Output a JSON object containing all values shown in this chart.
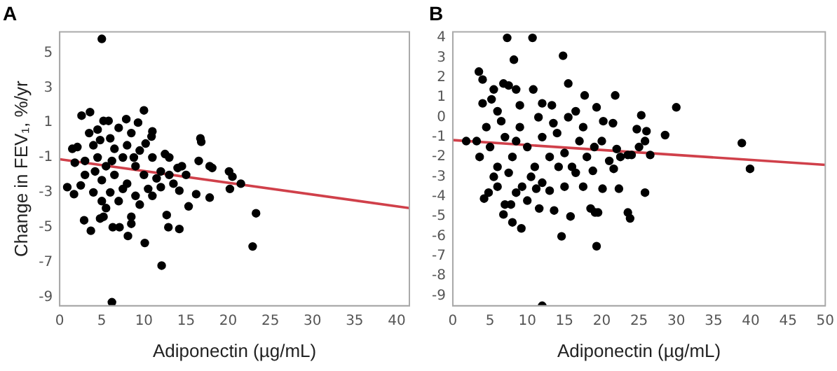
{
  "chart_data": [
    {
      "type": "scatter",
      "title": "A",
      "xlabel": "Adiponectin (µg/mL)",
      "ylabel": "Change in FEV₁, %/yr",
      "xlim": [
        0,
        41.5
      ],
      "ylim": [
        -9.5,
        6.2
      ],
      "xticks": [
        0,
        5,
        10,
        15,
        20,
        25,
        30,
        35,
        40
      ],
      "yticks": [
        -9,
        -7,
        -5,
        -3,
        -1,
        1,
        3,
        5
      ],
      "grid": false,
      "legend": false,
      "series": [
        {
          "color": "#000000",
          "marker": "circle",
          "x": [
            5.0,
            2.6,
            3.6,
            10,
            6.2,
            12.1,
            10.1,
            8.1,
            22.9,
            23.3,
            20.2,
            21.5,
            16.8,
            16.7,
            17.8,
            18.1,
            17.8,
            15.3,
            14.2,
            12.9,
            12.7,
            16.5,
            20.1,
            20.5,
            16.2,
            0.9,
            1.7,
            2.9,
            3.7,
            6.3,
            7.1,
            8.5,
            8.5,
            4.8,
            5.2,
            14.2,
            11,
            10.9,
            9.3,
            7.9,
            5.2,
            5.8,
            1.5,
            2.1,
            1.8,
            3.5,
            4.5,
            6,
            8.5,
            7,
            4,
            4.5,
            5.5,
            6.5,
            7.5,
            8,
            9,
            10,
            11,
            12,
            13,
            14,
            15,
            3,
            4,
            5,
            6,
            7,
            9,
            10.5,
            12,
            13,
            14.5,
            3,
            5,
            6.5,
            8,
            9.5,
            11.5,
            2.5,
            4.2,
            7.5,
            9.5,
            5.5,
            11,
            13.5,
            8.8,
            6.2,
            4.8,
            12.5,
            10.2
          ],
          "values": [
            5.8,
            1.4,
            1.6,
            1.7,
            -9.3,
            -7.2,
            -5.9,
            -5.5,
            -6.1,
            -4.2,
            -2.8,
            -2.5,
            -0.1,
            0.1,
            -1.5,
            -1.6,
            -3.3,
            -3.8,
            -5.1,
            -5,
            -4.3,
            -1.2,
            -1.8,
            -2.1,
            -3.1,
            -2.7,
            -3.1,
            -4.6,
            -5.2,
            -5.0,
            -5.0,
            -4.8,
            -4.4,
            -4.5,
            -4.4,
            -2.9,
            0.5,
            0.2,
            1,
            1.2,
            1.1,
            1.1,
            -0.5,
            -0.4,
            -1.3,
            0.4,
            0.6,
            0.1,
            0.4,
            0.7,
            -0.3,
            -1,
            -1.5,
            -2,
            -1,
            -2.5,
            -1.5,
            -2,
            -1,
            -1.8,
            -2,
            -1.6,
            -2,
            -2,
            -3,
            -3.5,
            -3,
            -3.5,
            -3.2,
            -2.8,
            -2.7,
            -1,
            -1.5,
            -1.2,
            -2.3,
            -0.5,
            -0.3,
            -0.6,
            -2.2,
            -2.6,
            -1.8,
            -2.8,
            -3.7,
            -3.9,
            -3.2,
            -2.5,
            -1.0,
            -1.2,
            0.0,
            -0.8,
            -0.2
          ]
        },
        {
          "type": "line",
          "color": "#d0404a",
          "marker": "none",
          "x": [
            0,
            41.5
          ],
          "values": [
            -1.1,
            -3.9
          ]
        }
      ]
    },
    {
      "type": "scatter",
      "title": "B",
      "xlabel": "Adiponectin (µg/mL)",
      "xlim": [
        0,
        50
      ],
      "ylim": [
        -9.5,
        4.3
      ],
      "xticks": [
        0,
        5,
        10,
        15,
        20,
        25,
        30,
        35,
        40,
        45,
        50
      ],
      "yticks": [
        -9,
        -8,
        -7,
        -6,
        -5,
        -4,
        -3,
        -2,
        -1,
        0,
        1,
        2,
        3,
        4
      ],
      "grid": false,
      "legend": false,
      "series": [
        {
          "color": "#000000",
          "marker": "circle",
          "x": [
            7.3,
            10.7,
            8.2,
            14.8,
            3.5,
            4,
            15.5,
            6.8,
            7.5,
            8.5,
            5.5,
            10.8,
            17.7,
            21.8,
            30,
            25.3,
            24.7,
            26,
            28.5,
            25.8,
            25,
            26.5,
            23.5,
            38.8,
            39.9,
            25.8,
            23.5,
            23.8,
            22.3,
            19.3,
            14.6,
            12,
            9.2,
            8,
            6.8,
            4.2,
            4.8,
            7,
            7.8,
            10,
            11.6,
            13.6,
            15.8,
            18.5,
            19.1,
            19.5,
            20.1,
            17.5,
            12,
            9.3,
            3.2,
            1.8,
            4,
            5.2,
            6,
            9,
            12,
            13.3,
            16.5,
            19.3,
            20.2,
            21.5,
            3.6,
            5,
            6,
            7,
            8,
            9,
            10,
            11,
            12,
            13,
            14,
            15,
            16,
            17,
            18,
            19,
            20,
            21,
            22,
            5.5,
            7.5,
            10.5,
            14.2,
            16.5,
            18.8,
            4.5,
            6.5,
            8.5,
            11.5,
            13.5,
            15.5,
            17.5,
            21.6,
            24,
            22.5,
            15,
            13,
            6,
            8.5,
            11.2
          ],
          "values": [
            4,
            4,
            2.9,
            3.1,
            2.3,
            1.9,
            1.7,
            1.7,
            1.6,
            1.4,
            1.4,
            1.4,
            1.1,
            1.1,
            0.5,
            0.1,
            -0.6,
            -0.7,
            -0.9,
            -1.2,
            -1.5,
            -1.9,
            -1.9,
            -1.3,
            -2.6,
            -3.8,
            -4.8,
            -5.1,
            -3.6,
            -6.5,
            -6.0,
            -9.5,
            -5.6,
            -5.3,
            -4.9,
            -4.1,
            -3.8,
            -4.4,
            -4.4,
            -4.2,
            -4.6,
            -4.7,
            -5,
            -4.6,
            -4.8,
            -4.8,
            -3.6,
            -3.5,
            -3.3,
            -3.5,
            -1.2,
            -1.2,
            0.7,
            0.9,
            0.3,
            0.6,
            0.7,
            0.6,
            0.3,
            0.5,
            -0.2,
            -0.3,
            -2,
            -1.5,
            -2.5,
            -1,
            -2,
            -0.5,
            -1.5,
            -2.5,
            -1,
            -2,
            -0.8,
            -1.8,
            -2.5,
            -1.2,
            -2,
            -1.5,
            -1.2,
            -2.2,
            -1.6,
            -3,
            -2.8,
            -3,
            -2.5,
            -2.8,
            -2.7,
            -0.5,
            -0.2,
            -1.2,
            0,
            -0.3,
            0,
            -0.5,
            -2.6,
            -1.9,
            -2.0,
            -3.5,
            -3.7,
            -3.5,
            -3.8,
            -3.6
          ]
        },
        {
          "type": "line",
          "color": "#d0404a",
          "marker": "none",
          "x": [
            0,
            50
          ],
          "values": [
            -1.15,
            -2.4
          ]
        }
      ]
    }
  ]
}
